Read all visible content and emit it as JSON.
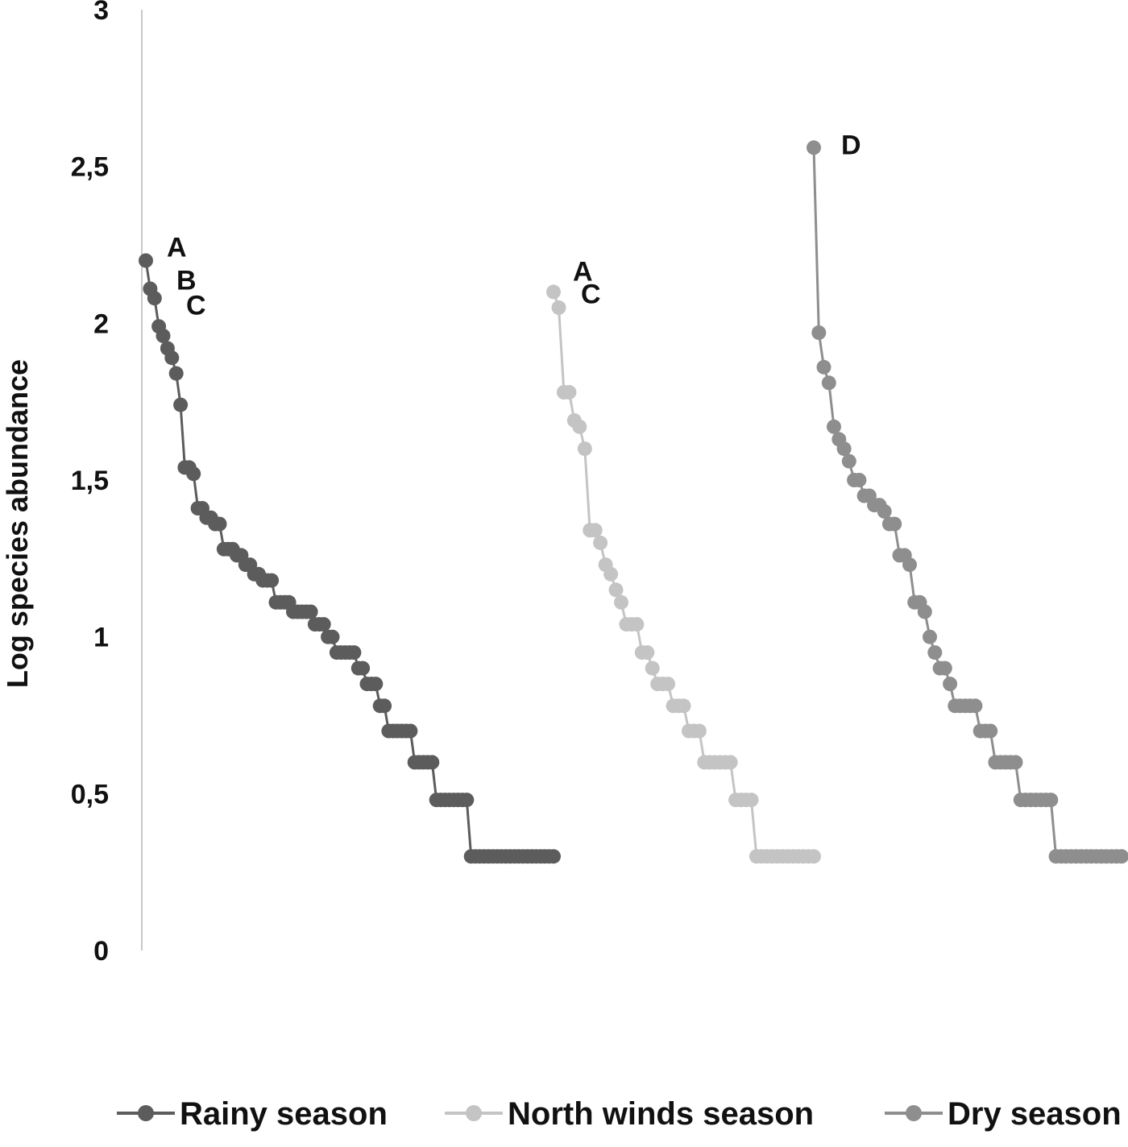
{
  "chart_data": {
    "type": "line",
    "title": "",
    "xlabel": "",
    "ylabel": "Log species abundance",
    "ylim": [
      0,
      3
    ],
    "yticks": [
      0,
      0.5,
      1,
      1.5,
      2,
      2.5,
      3
    ],
    "ytick_labels": [
      "0",
      "0,5",
      "1",
      "1,5",
      "2",
      "2,5",
      "3"
    ],
    "grid": false,
    "legend_position": "bottom",
    "x_description": "species rank (rank-abundance curve per season)",
    "series": [
      {
        "name": "Rainy season",
        "color": "#5c5c5c",
        "steps": [
          {
            "value": 2.2,
            "count": 1
          },
          {
            "value": 2.11,
            "count": 1
          },
          {
            "value": 2.08,
            "count": 1
          },
          {
            "value": 1.99,
            "count": 1
          },
          {
            "value": 1.96,
            "count": 1
          },
          {
            "value": 1.92,
            "count": 1
          },
          {
            "value": 1.89,
            "count": 1
          },
          {
            "value": 1.84,
            "count": 1
          },
          {
            "value": 1.74,
            "count": 1
          },
          {
            "value": 1.54,
            "count": 2
          },
          {
            "value": 1.52,
            "count": 1
          },
          {
            "value": 1.41,
            "count": 2
          },
          {
            "value": 1.38,
            "count": 2
          },
          {
            "value": 1.36,
            "count": 2
          },
          {
            "value": 1.28,
            "count": 3
          },
          {
            "value": 1.26,
            "count": 2
          },
          {
            "value": 1.23,
            "count": 2
          },
          {
            "value": 1.2,
            "count": 2
          },
          {
            "value": 1.18,
            "count": 3
          },
          {
            "value": 1.11,
            "count": 4
          },
          {
            "value": 1.08,
            "count": 5
          },
          {
            "value": 1.04,
            "count": 3
          },
          {
            "value": 1.0,
            "count": 2
          },
          {
            "value": 0.95,
            "count": 5
          },
          {
            "value": 0.9,
            "count": 2
          },
          {
            "value": 0.85,
            "count": 3
          },
          {
            "value": 0.78,
            "count": 2
          },
          {
            "value": 0.7,
            "count": 6
          },
          {
            "value": 0.6,
            "count": 5
          },
          {
            "value": 0.48,
            "count": 8
          },
          {
            "value": 0.3,
            "count": 20
          }
        ]
      },
      {
        "name": "North winds season",
        "color": "#c4c4c4",
        "steps": [
          {
            "value": 2.1,
            "count": 1
          },
          {
            "value": 2.05,
            "count": 1
          },
          {
            "value": 1.78,
            "count": 2
          },
          {
            "value": 1.69,
            "count": 1
          },
          {
            "value": 1.67,
            "count": 1
          },
          {
            "value": 1.6,
            "count": 1
          },
          {
            "value": 1.34,
            "count": 2
          },
          {
            "value": 1.3,
            "count": 1
          },
          {
            "value": 1.23,
            "count": 1
          },
          {
            "value": 1.2,
            "count": 1
          },
          {
            "value": 1.15,
            "count": 1
          },
          {
            "value": 1.11,
            "count": 1
          },
          {
            "value": 1.04,
            "count": 3
          },
          {
            "value": 0.95,
            "count": 2
          },
          {
            "value": 0.9,
            "count": 1
          },
          {
            "value": 0.85,
            "count": 3
          },
          {
            "value": 0.78,
            "count": 3
          },
          {
            "value": 0.7,
            "count": 3
          },
          {
            "value": 0.6,
            "count": 6
          },
          {
            "value": 0.48,
            "count": 4
          },
          {
            "value": 0.3,
            "count": 12
          }
        ]
      },
      {
        "name": "Dry season",
        "color": "#8e8e8e",
        "steps": [
          {
            "value": 2.56,
            "count": 1
          },
          {
            "value": 1.97,
            "count": 1
          },
          {
            "value": 1.86,
            "count": 1
          },
          {
            "value": 1.81,
            "count": 1
          },
          {
            "value": 1.67,
            "count": 1
          },
          {
            "value": 1.63,
            "count": 1
          },
          {
            "value": 1.6,
            "count": 1
          },
          {
            "value": 1.56,
            "count": 1
          },
          {
            "value": 1.5,
            "count": 2
          },
          {
            "value": 1.45,
            "count": 2
          },
          {
            "value": 1.42,
            "count": 2
          },
          {
            "value": 1.4,
            "count": 1
          },
          {
            "value": 1.36,
            "count": 2
          },
          {
            "value": 1.26,
            "count": 2
          },
          {
            "value": 1.23,
            "count": 1
          },
          {
            "value": 1.11,
            "count": 2
          },
          {
            "value": 1.08,
            "count": 1
          },
          {
            "value": 1.0,
            "count": 1
          },
          {
            "value": 0.95,
            "count": 1
          },
          {
            "value": 0.9,
            "count": 2
          },
          {
            "value": 0.85,
            "count": 1
          },
          {
            "value": 0.78,
            "count": 5
          },
          {
            "value": 0.7,
            "count": 3
          },
          {
            "value": 0.6,
            "count": 5
          },
          {
            "value": 0.48,
            "count": 7
          },
          {
            "value": 0.3,
            "count": 14
          }
        ]
      }
    ],
    "annotations": [
      {
        "series": "Rainy season",
        "rank": 1,
        "label": "A"
      },
      {
        "series": "Rainy season",
        "rank": 2,
        "label": "B"
      },
      {
        "series": "Rainy season",
        "rank": 3,
        "label": "C"
      },
      {
        "series": "North winds season",
        "rank": 1,
        "label": "A"
      },
      {
        "series": "North winds season",
        "rank": 2,
        "label": "C"
      },
      {
        "series": "Dry season",
        "rank": 1,
        "label": "D"
      }
    ]
  }
}
